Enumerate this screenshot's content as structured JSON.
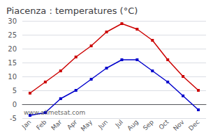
{
  "chart_data": {
    "type": "line",
    "title": "Piacenza : temperatures (°C)",
    "categories": [
      "Jan",
      "Feb",
      "Mar",
      "Apr",
      "May",
      "Jun",
      "Jul",
      "Aug",
      "Sep",
      "Oct",
      "Nov",
      "Dec"
    ],
    "series": [
      {
        "color": "#cc0000",
        "marker": "square",
        "line_style": "solid",
        "values": [
          4,
          8,
          12,
          17,
          21,
          26,
          29,
          27,
          23,
          16,
          10,
          5
        ]
      },
      {
        "color": "#0000cc",
        "marker": "square",
        "line_style": "solid",
        "values": [
          -4,
          -3,
          2,
          5,
          9,
          13,
          16,
          16,
          12,
          8,
          3,
          -2
        ]
      }
    ],
    "ylim": [
      -5,
      30
    ],
    "yticks": [
      -5,
      0,
      5,
      10,
      15,
      20,
      25,
      30
    ],
    "grid": true,
    "annotations": [
      "www.allmetsat.com"
    ]
  }
}
